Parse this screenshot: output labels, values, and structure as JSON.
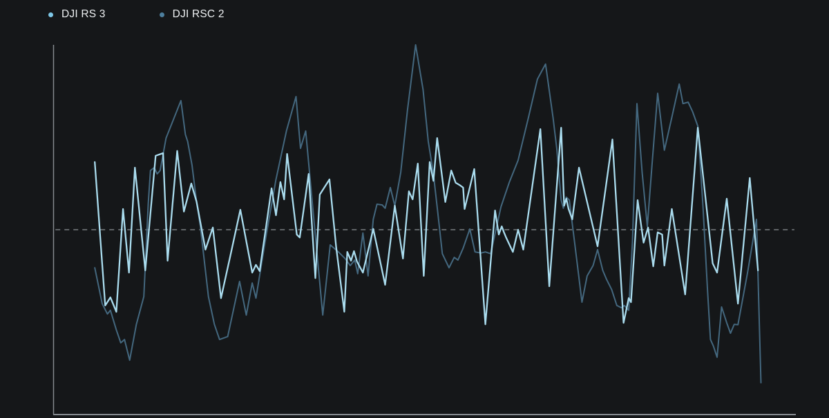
{
  "legend": {
    "items": [
      {
        "label": "DJI RS 3",
        "color": "#7ec8e8"
      },
      {
        "label": "DJI RSC 2",
        "color": "#4d7f9e"
      }
    ]
  },
  "colors": {
    "background": "#151719",
    "axis": "#868b90",
    "reference_line": "#8d9296",
    "rs3_line": "#aadcee",
    "rsc2_line": "#44687f"
  },
  "chart_data": {
    "type": "line",
    "title": "",
    "legend_position": "top-left",
    "grid": false,
    "x_axis": {
      "label": "",
      "tick_labels_visible": false,
      "range_percent": [
        0,
        100
      ]
    },
    "y_axis": {
      "label": "",
      "tick_labels_visible": false,
      "range_normalized": [
        0,
        100
      ]
    },
    "reference_line": {
      "style": "dashed",
      "value": 50,
      "x_start_percent": 0.3,
      "x_end_percent": 99.8
    },
    "series": [
      {
        "name": "DJI RS 3",
        "color": "#aadcee",
        "points": [
          [
            5.6,
            68.3
          ],
          [
            7.0,
            29.5
          ],
          [
            7.7,
            31.7
          ],
          [
            8.5,
            27.8
          ],
          [
            9.4,
            55.6
          ],
          [
            10.2,
            38.4
          ],
          [
            11.0,
            66.8
          ],
          [
            12.4,
            39.0
          ],
          [
            13.8,
            70.0
          ],
          [
            14.8,
            70.7
          ],
          [
            15.4,
            41.6
          ],
          [
            16.7,
            71.3
          ],
          [
            17.6,
            54.9
          ],
          [
            18.6,
            62.5
          ],
          [
            19.3,
            57.6
          ],
          [
            20.5,
            44.6
          ],
          [
            21.5,
            50.6
          ],
          [
            22.6,
            31.5
          ],
          [
            23.8,
            42.5
          ],
          [
            25.2,
            55.4
          ],
          [
            26.8,
            38.4
          ],
          [
            27.3,
            40.5
          ],
          [
            27.8,
            38.8
          ],
          [
            29.4,
            61.2
          ],
          [
            30.0,
            53.9
          ],
          [
            30.6,
            62.9
          ],
          [
            31.1,
            58.2
          ],
          [
            31.5,
            70.5
          ],
          [
            32.8,
            48.7
          ],
          [
            33.2,
            47.9
          ],
          [
            34.4,
            65.1
          ],
          [
            35.3,
            36.9
          ],
          [
            35.9,
            59.5
          ],
          [
            37.2,
            63.6
          ],
          [
            38.1,
            45.3
          ],
          [
            39.2,
            27.8
          ],
          [
            39.6,
            44.0
          ],
          [
            40.1,
            41.6
          ],
          [
            40.5,
            44.2
          ],
          [
            40.9,
            41.4
          ],
          [
            41.7,
            38.4
          ],
          [
            43.1,
            50.2
          ],
          [
            44.7,
            35.1
          ],
          [
            46.0,
            56.5
          ],
          [
            47.1,
            42.2
          ],
          [
            47.9,
            60.4
          ],
          [
            48.4,
            58.2
          ],
          [
            49.1,
            67.9
          ],
          [
            49.9,
            37.5
          ],
          [
            50.7,
            68.3
          ],
          [
            51.2,
            63.2
          ],
          [
            51.7,
            74.8
          ],
          [
            52.8,
            57.5
          ],
          [
            53.6,
            66.0
          ],
          [
            54.2,
            62.7
          ],
          [
            54.7,
            62.1
          ],
          [
            55.2,
            61.4
          ],
          [
            55.4,
            55.6
          ],
          [
            56.7,
            66.4
          ],
          [
            58.2,
            24.4
          ],
          [
            59.5,
            55.2
          ],
          [
            60.0,
            48.7
          ],
          [
            60.4,
            50.9
          ],
          [
            60.7,
            49.3
          ],
          [
            61.0,
            47.8
          ],
          [
            61.9,
            44.0
          ],
          [
            62.6,
            50.0
          ],
          [
            63.3,
            44.6
          ],
          [
            65.6,
            77.2
          ],
          [
            66.8,
            34.7
          ],
          [
            68.4,
            77.6
          ],
          [
            68.8,
            56.5
          ],
          [
            69.1,
            58.4
          ],
          [
            69.4,
            55.6
          ],
          [
            69.9,
            52.8
          ],
          [
            70.8,
            66.8
          ],
          [
            73.3,
            45.5
          ],
          [
            75.3,
            74.4
          ],
          [
            76.8,
            24.8
          ],
          [
            77.5,
            31.5
          ],
          [
            77.8,
            30.4
          ],
          [
            78.7,
            58.0
          ],
          [
            79.5,
            46.5
          ],
          [
            80.1,
            50.6
          ],
          [
            80.8,
            40.1
          ],
          [
            81.4,
            49.3
          ],
          [
            82.0,
            48.7
          ],
          [
            82.3,
            40.3
          ],
          [
            83.3,
            55.6
          ],
          [
            85.1,
            32.5
          ],
          [
            86.8,
            77.6
          ],
          [
            88.8,
            40.9
          ],
          [
            89.4,
            38.4
          ],
          [
            90.7,
            58.4
          ],
          [
            92.2,
            30.0
          ],
          [
            93.8,
            64.0
          ],
          [
            94.9,
            39.0
          ]
        ]
      },
      {
        "name": "DJI RSC 2",
        "color": "#44687f",
        "points": [
          [
            5.6,
            39.7
          ],
          [
            6.6,
            30.0
          ],
          [
            7.3,
            27.2
          ],
          [
            7.7,
            28.2
          ],
          [
            8.5,
            22.9
          ],
          [
            9.1,
            19.4
          ],
          [
            9.6,
            20.3
          ],
          [
            10.3,
            14.7
          ],
          [
            11.2,
            24.4
          ],
          [
            12.2,
            31.9
          ],
          [
            12.8,
            57.1
          ],
          [
            13.1,
            66.0
          ],
          [
            13.6,
            66.8
          ],
          [
            14.0,
            65.1
          ],
          [
            14.4,
            66.0
          ],
          [
            15.2,
            74.8
          ],
          [
            17.2,
            84.9
          ],
          [
            17.8,
            75.7
          ],
          [
            18.1,
            73.9
          ],
          [
            18.7,
            67.4
          ],
          [
            19.3,
            57.6
          ],
          [
            19.8,
            51.1
          ],
          [
            20.9,
            31.9
          ],
          [
            21.7,
            24.4
          ],
          [
            22.4,
            20.3
          ],
          [
            23.5,
            21.1
          ],
          [
            25.1,
            36.0
          ],
          [
            26.0,
            26.9
          ],
          [
            26.8,
            35.6
          ],
          [
            27.3,
            31.5
          ],
          [
            28.7,
            48.7
          ],
          [
            30.0,
            63.6
          ],
          [
            31.4,
            76.7
          ],
          [
            32.7,
            86.0
          ],
          [
            33.3,
            72.0
          ],
          [
            34.0,
            76.7
          ],
          [
            35.2,
            50.6
          ],
          [
            36.3,
            26.9
          ],
          [
            37.3,
            45.9
          ],
          [
            38.4,
            44.0
          ],
          [
            39.3,
            42.2
          ],
          [
            40.0,
            40.3
          ],
          [
            40.6,
            41.8
          ],
          [
            41.0,
            38.1
          ],
          [
            41.7,
            49.1
          ],
          [
            42.4,
            37.5
          ],
          [
            43.1,
            52.8
          ],
          [
            43.6,
            56.9
          ],
          [
            44.3,
            56.7
          ],
          [
            44.7,
            55.8
          ],
          [
            45.4,
            61.4
          ],
          [
            46.0,
            56.5
          ],
          [
            46.8,
            65.5
          ],
          [
            47.7,
            82.3
          ],
          [
            48.8,
            100.0
          ],
          [
            49.8,
            87.9
          ],
          [
            50.5,
            73.9
          ],
          [
            51.2,
            65.1
          ],
          [
            51.8,
            54.3
          ],
          [
            52.4,
            43.5
          ],
          [
            53.3,
            39.7
          ],
          [
            54.0,
            42.5
          ],
          [
            54.5,
            41.8
          ],
          [
            55.2,
            45.0
          ],
          [
            56.1,
            50.2
          ],
          [
            56.8,
            44.0
          ],
          [
            57.6,
            43.7
          ],
          [
            58.2,
            44.0
          ],
          [
            58.9,
            43.5
          ],
          [
            60.3,
            56.2
          ],
          [
            61.4,
            62.7
          ],
          [
            62.6,
            68.8
          ],
          [
            64.0,
            80.4
          ],
          [
            65.2,
            90.7
          ],
          [
            66.3,
            94.8
          ],
          [
            67.3,
            80.4
          ],
          [
            67.8,
            72.0
          ],
          [
            68.4,
            58.0
          ],
          [
            68.7,
            55.8
          ],
          [
            69.1,
            58.8
          ],
          [
            69.5,
            58.0
          ],
          [
            70.2,
            46.8
          ],
          [
            71.2,
            30.4
          ],
          [
            71.9,
            37.5
          ],
          [
            72.7,
            40.3
          ],
          [
            73.3,
            44.6
          ],
          [
            74.0,
            39.0
          ],
          [
            74.5,
            36.6
          ],
          [
            75.2,
            33.8
          ],
          [
            75.9,
            29.5
          ],
          [
            76.5,
            28.9
          ],
          [
            76.9,
            29.5
          ],
          [
            77.5,
            28.2
          ],
          [
            78.0,
            46.8
          ],
          [
            78.6,
            84.1
          ],
          [
            79.3,
            65.5
          ],
          [
            80.0,
            50.9
          ],
          [
            80.7,
            69.2
          ],
          [
            81.4,
            86.9
          ],
          [
            82.3,
            71.5
          ],
          [
            83.3,
            80.4
          ],
          [
            84.3,
            89.4
          ],
          [
            84.8,
            84.1
          ],
          [
            85.5,
            84.5
          ],
          [
            86.1,
            81.9
          ],
          [
            86.8,
            78.0
          ],
          [
            87.5,
            56.2
          ],
          [
            88.1,
            33.8
          ],
          [
            88.5,
            20.3
          ],
          [
            88.9,
            18.5
          ],
          [
            89.4,
            15.5
          ],
          [
            90.0,
            29.1
          ],
          [
            90.7,
            24.8
          ],
          [
            91.2,
            22.0
          ],
          [
            91.7,
            24.4
          ],
          [
            92.2,
            24.3
          ],
          [
            93.5,
            38.4
          ],
          [
            94.7,
            52.8
          ],
          [
            95.3,
            8.6
          ]
        ]
      }
    ]
  }
}
